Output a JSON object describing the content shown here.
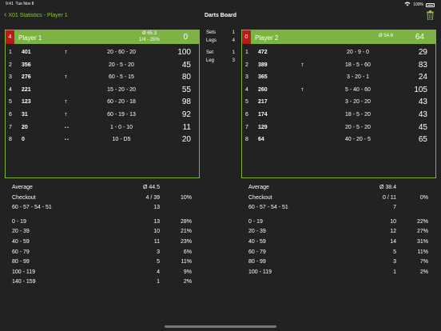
{
  "status": {
    "time": "9:41",
    "date": "Tue Nov 8",
    "battery": "100%"
  },
  "nav": {
    "back_label": "X01 Statistics - Player 1",
    "title": "Darts Board"
  },
  "colors": {
    "accent": "#7cb342",
    "active_marker": "#b71c1c",
    "background": "#222222"
  },
  "player1": {
    "index": "4",
    "name": "Player 1",
    "avg": "Ø 65.3",
    "checkout": "1/4 - 25%",
    "score": "0",
    "throws": [
      {
        "n": "1",
        "v": "401",
        "m": "T",
        "d": "20 - 60 - 20",
        "r": "100"
      },
      {
        "n": "2",
        "v": "356",
        "m": "",
        "d": "20 - 5 - 20",
        "r": "45"
      },
      {
        "n": "3",
        "v": "276",
        "m": "T",
        "d": "60 - 5 - 15",
        "r": "80"
      },
      {
        "n": "4",
        "v": "221",
        "m": "",
        "d": "15 - 20 - 20",
        "r": "55"
      },
      {
        "n": "5",
        "v": "123",
        "m": "T",
        "d": "60 - 20 - 18",
        "r": "98"
      },
      {
        "n": "6",
        "v": "31",
        "m": "T",
        "d": "60 - 19 - 13",
        "r": "92"
      },
      {
        "n": "7",
        "v": "20",
        "m": "• •",
        "d": "1 - 0 - 10",
        "r": "11"
      },
      {
        "n": "8",
        "v": "0",
        "m": "• •",
        "d": "10 - D5",
        "r": "20"
      }
    ]
  },
  "player2": {
    "index": "0",
    "name": "Player 2",
    "avg": "Ø 54.6",
    "score": "64",
    "throws": [
      {
        "n": "1",
        "v": "472",
        "m": "",
        "d": "20 - 9 - 0",
        "r": "29"
      },
      {
        "n": "2",
        "v": "389",
        "m": "T",
        "d": "18 - 5 - 60",
        "r": "83"
      },
      {
        "n": "3",
        "v": "365",
        "m": "",
        "d": "3 - 20 - 1",
        "r": "24"
      },
      {
        "n": "4",
        "v": "260",
        "m": "T",
        "d": "5 - 40 - 60",
        "r": "105"
      },
      {
        "n": "5",
        "v": "217",
        "m": "",
        "d": "3 - 20 - 20",
        "r": "43"
      },
      {
        "n": "6",
        "v": "174",
        "m": "",
        "d": "18 - 5 - 20",
        "r": "43"
      },
      {
        "n": "7",
        "v": "129",
        "m": "",
        "d": "20 - 5 - 20",
        "r": "45"
      },
      {
        "n": "8",
        "v": "64",
        "m": "",
        "d": "40 - 20 - 5",
        "r": "65"
      }
    ]
  },
  "center": {
    "sets_label": "Sets",
    "sets_value": "1",
    "legs_label": "Legs",
    "legs_value": "4",
    "set_label": "Set",
    "set_value": "1",
    "leg_label": "Leg",
    "leg_value": "3"
  },
  "stats1": {
    "average": {
      "label": "Average",
      "value": "Ø 44.5",
      "pct": ""
    },
    "checkout": {
      "label": "Checkout",
      "value": "4 / 39",
      "pct": "10%"
    },
    "high": {
      "label": "60 - 57 - 54 - 51",
      "value": "13",
      "pct": ""
    },
    "ranges": [
      {
        "label": "0 - 19",
        "value": "13",
        "pct": "28%"
      },
      {
        "label": "20 - 39",
        "value": "10",
        "pct": "21%"
      },
      {
        "label": "40 - 59",
        "value": "11",
        "pct": "23%"
      },
      {
        "label": "60 - 79",
        "value": "3",
        "pct": "6%"
      },
      {
        "label": "80 - 99",
        "value": "5",
        "pct": "11%"
      },
      {
        "label": "100 - 119",
        "value": "4",
        "pct": "9%"
      },
      {
        "label": "140 - 159",
        "value": "1",
        "pct": "2%"
      }
    ]
  },
  "stats2": {
    "average": {
      "label": "Average",
      "value": "Ø 38.4",
      "pct": ""
    },
    "checkout": {
      "label": "Checkout",
      "value": "0 / 11",
      "pct": "0%"
    },
    "high": {
      "label": "60 - 57 - 54 - 51",
      "value": "7",
      "pct": ""
    },
    "ranges": [
      {
        "label": "0 - 19",
        "value": "10",
        "pct": "22%"
      },
      {
        "label": "20 - 39",
        "value": "12",
        "pct": "27%"
      },
      {
        "label": "40 - 59",
        "value": "14",
        "pct": "31%"
      },
      {
        "label": "60 - 79",
        "value": "5",
        "pct": "11%"
      },
      {
        "label": "80 - 99",
        "value": "3",
        "pct": "7%"
      },
      {
        "label": "100 - 119",
        "value": "1",
        "pct": "2%"
      }
    ]
  }
}
